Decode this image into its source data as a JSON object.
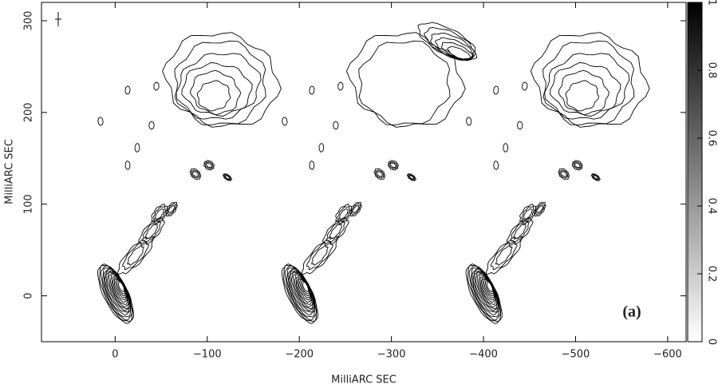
{
  "chart_data": {
    "type": "contour",
    "xlabel": "MilliARC SEC",
    "ylabel": "MilliARC SEC",
    "annotation": "(a)",
    "xlim": [
      80,
      -620
    ],
    "ylim": [
      -50,
      320
    ],
    "xticks": [
      0,
      {
        "value": -100,
        "label": "−100"
      },
      {
        "value": -200,
        "label": "−200"
      },
      {
        "value": -300,
        "label": "−300"
      },
      {
        "value": -400,
        "label": "−400"
      },
      {
        "value": -500,
        "label": "−500"
      },
      {
        "value": -600,
        "label": "−600"
      }
    ],
    "yticks": [
      0,
      100,
      200,
      300
    ],
    "colorbar": {
      "lim": [
        0,
        1
      ],
      "ticks": [
        0,
        0.2,
        0.4,
        0.6,
        0.8,
        1
      ],
      "colors": [
        "#ffffff",
        "#000000"
      ]
    }
  }
}
